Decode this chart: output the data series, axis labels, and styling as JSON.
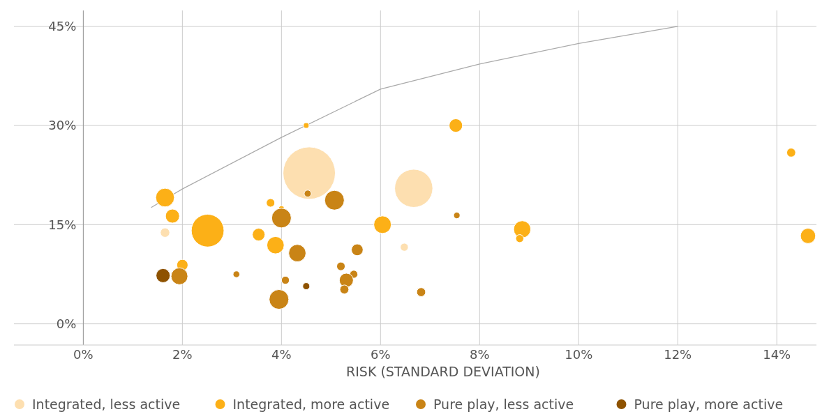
{
  "chart_data": {
    "type": "bubble",
    "xlabel": "RISK (STANDARD DEVIATION)",
    "xlim": [
      -1.4,
      14.8
    ],
    "ylim": [
      -3.2,
      47.4
    ],
    "xticks": [
      {
        "value": 0,
        "label": "0%"
      },
      {
        "value": 2,
        "label": "2%"
      },
      {
        "value": 4,
        "label": "4%"
      },
      {
        "value": 6,
        "label": "6%"
      },
      {
        "value": 8,
        "label": "8%"
      },
      {
        "value": 10,
        "label": "10%"
      },
      {
        "value": 12,
        "label": "12%"
      },
      {
        "value": 14,
        "label": "14%"
      }
    ],
    "yticks": [
      {
        "value": 0,
        "label": "0%"
      },
      {
        "value": 15,
        "label": "15%"
      },
      {
        "value": 30,
        "label": "30%"
      },
      {
        "value": 45,
        "label": "45%"
      }
    ],
    "grid": true,
    "legend": "bottom",
    "marker": "circle",
    "series": [
      {
        "type": "line",
        "color": "#aaaaaa",
        "marker": "none",
        "x": [
          1.37,
          2,
          4,
          6,
          8,
          10,
          12
        ],
        "values": [
          17.6,
          20.4,
          28.2,
          35.5,
          39.3,
          42.4,
          45
        ]
      },
      {
        "name": "Integrated, less active",
        "color": "#fddfb0",
        "x": [
          4.56,
          1.65,
          6.67,
          6.48
        ],
        "values": [
          22.8,
          13.8,
          20.5,
          11.6
        ],
        "sizes": [
          1,
          0.032,
          0.53,
          0.023
        ]
      },
      {
        "name": "Integrated, more active",
        "color": "#fcb017",
        "x": [
          1.65,
          1.8,
          2.51,
          2.0,
          4.5,
          3.78,
          4.0,
          3.54,
          3.88,
          6.04,
          7.52,
          8.86,
          8.81,
          14.29,
          14.63
        ],
        "values": [
          19.1,
          16.3,
          14.1,
          8.9,
          30.0,
          18.3,
          17.4,
          13.5,
          11.9,
          15.0,
          30.0,
          14.3,
          12.9,
          25.9,
          13.3
        ],
        "sizes": [
          0.127,
          0.072,
          0.39,
          0.046,
          0.0115,
          0.026,
          0.013,
          0.058,
          0.109,
          0.112,
          0.066,
          0.107,
          0.023,
          0.029,
          0.084
        ]
      },
      {
        "name": "Pure play, less active",
        "color": "#c98416",
        "x": [
          4.53,
          5.07,
          4.0,
          4.32,
          5.53,
          1.94,
          3.09,
          4.08,
          3.95,
          5.2,
          5.46,
          5.31,
          5.27,
          7.54,
          6.82
        ],
        "values": [
          19.7,
          18.7,
          16.0,
          10.7,
          11.2,
          7.2,
          7.5,
          6.6,
          3.7,
          8.7,
          7.5,
          6.6,
          5.2,
          16.4,
          4.8
        ],
        "sizes": [
          0.018,
          0.141,
          0.141,
          0.109,
          0.05,
          0.103,
          0.016,
          0.023,
          0.141,
          0.026,
          0.023,
          0.072,
          0.029,
          0.015,
          0.029
        ]
      },
      {
        "name": "Pure play, more active",
        "color": "#8e5200",
        "x": [
          1.61,
          4.5
        ],
        "values": [
          7.3,
          5.7
        ],
        "sizes": [
          0.072,
          0.018
        ]
      }
    ]
  }
}
